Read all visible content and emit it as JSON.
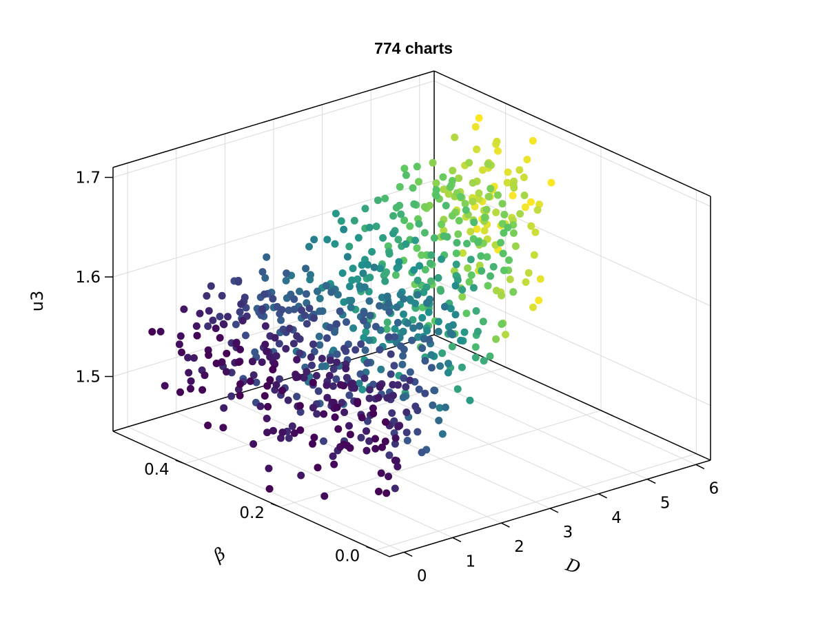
{
  "chart_data": {
    "type": "scatter",
    "title": "774 charts",
    "point_count": 774,
    "axes": {
      "x": {
        "label": "D",
        "range": [
          -0.3,
          6.3
        ],
        "ticks": [
          0,
          1,
          2,
          3,
          4,
          5,
          6
        ],
        "tick_labels": [
          "0",
          "1",
          "2",
          "3",
          "4",
          "5",
          "6"
        ]
      },
      "y": {
        "label": "β",
        "range": [
          -0.03,
          0.55
        ],
        "ticks": [
          0.0,
          0.2,
          0.4
        ],
        "tick_labels": [
          "0.0",
          "0.2",
          "0.4"
        ]
      },
      "z": {
        "label": "u3",
        "range": [
          1.445,
          1.71
        ],
        "ticks": [
          1.5,
          1.6,
          1.7
        ],
        "tick_labels": [
          "1.5",
          "1.6",
          "1.7"
        ]
      }
    },
    "grid": true,
    "colormap": "viridis",
    "color_by": "D",
    "color_range": [
      0,
      6
    ],
    "colormap_stops": [
      "#440154",
      "#3b528b",
      "#21918c",
      "#5ec962",
      "#fde725"
    ],
    "point_color_default": "#21918c",
    "axis_color": "#000000",
    "grid_color": "#d9d9d9"
  }
}
